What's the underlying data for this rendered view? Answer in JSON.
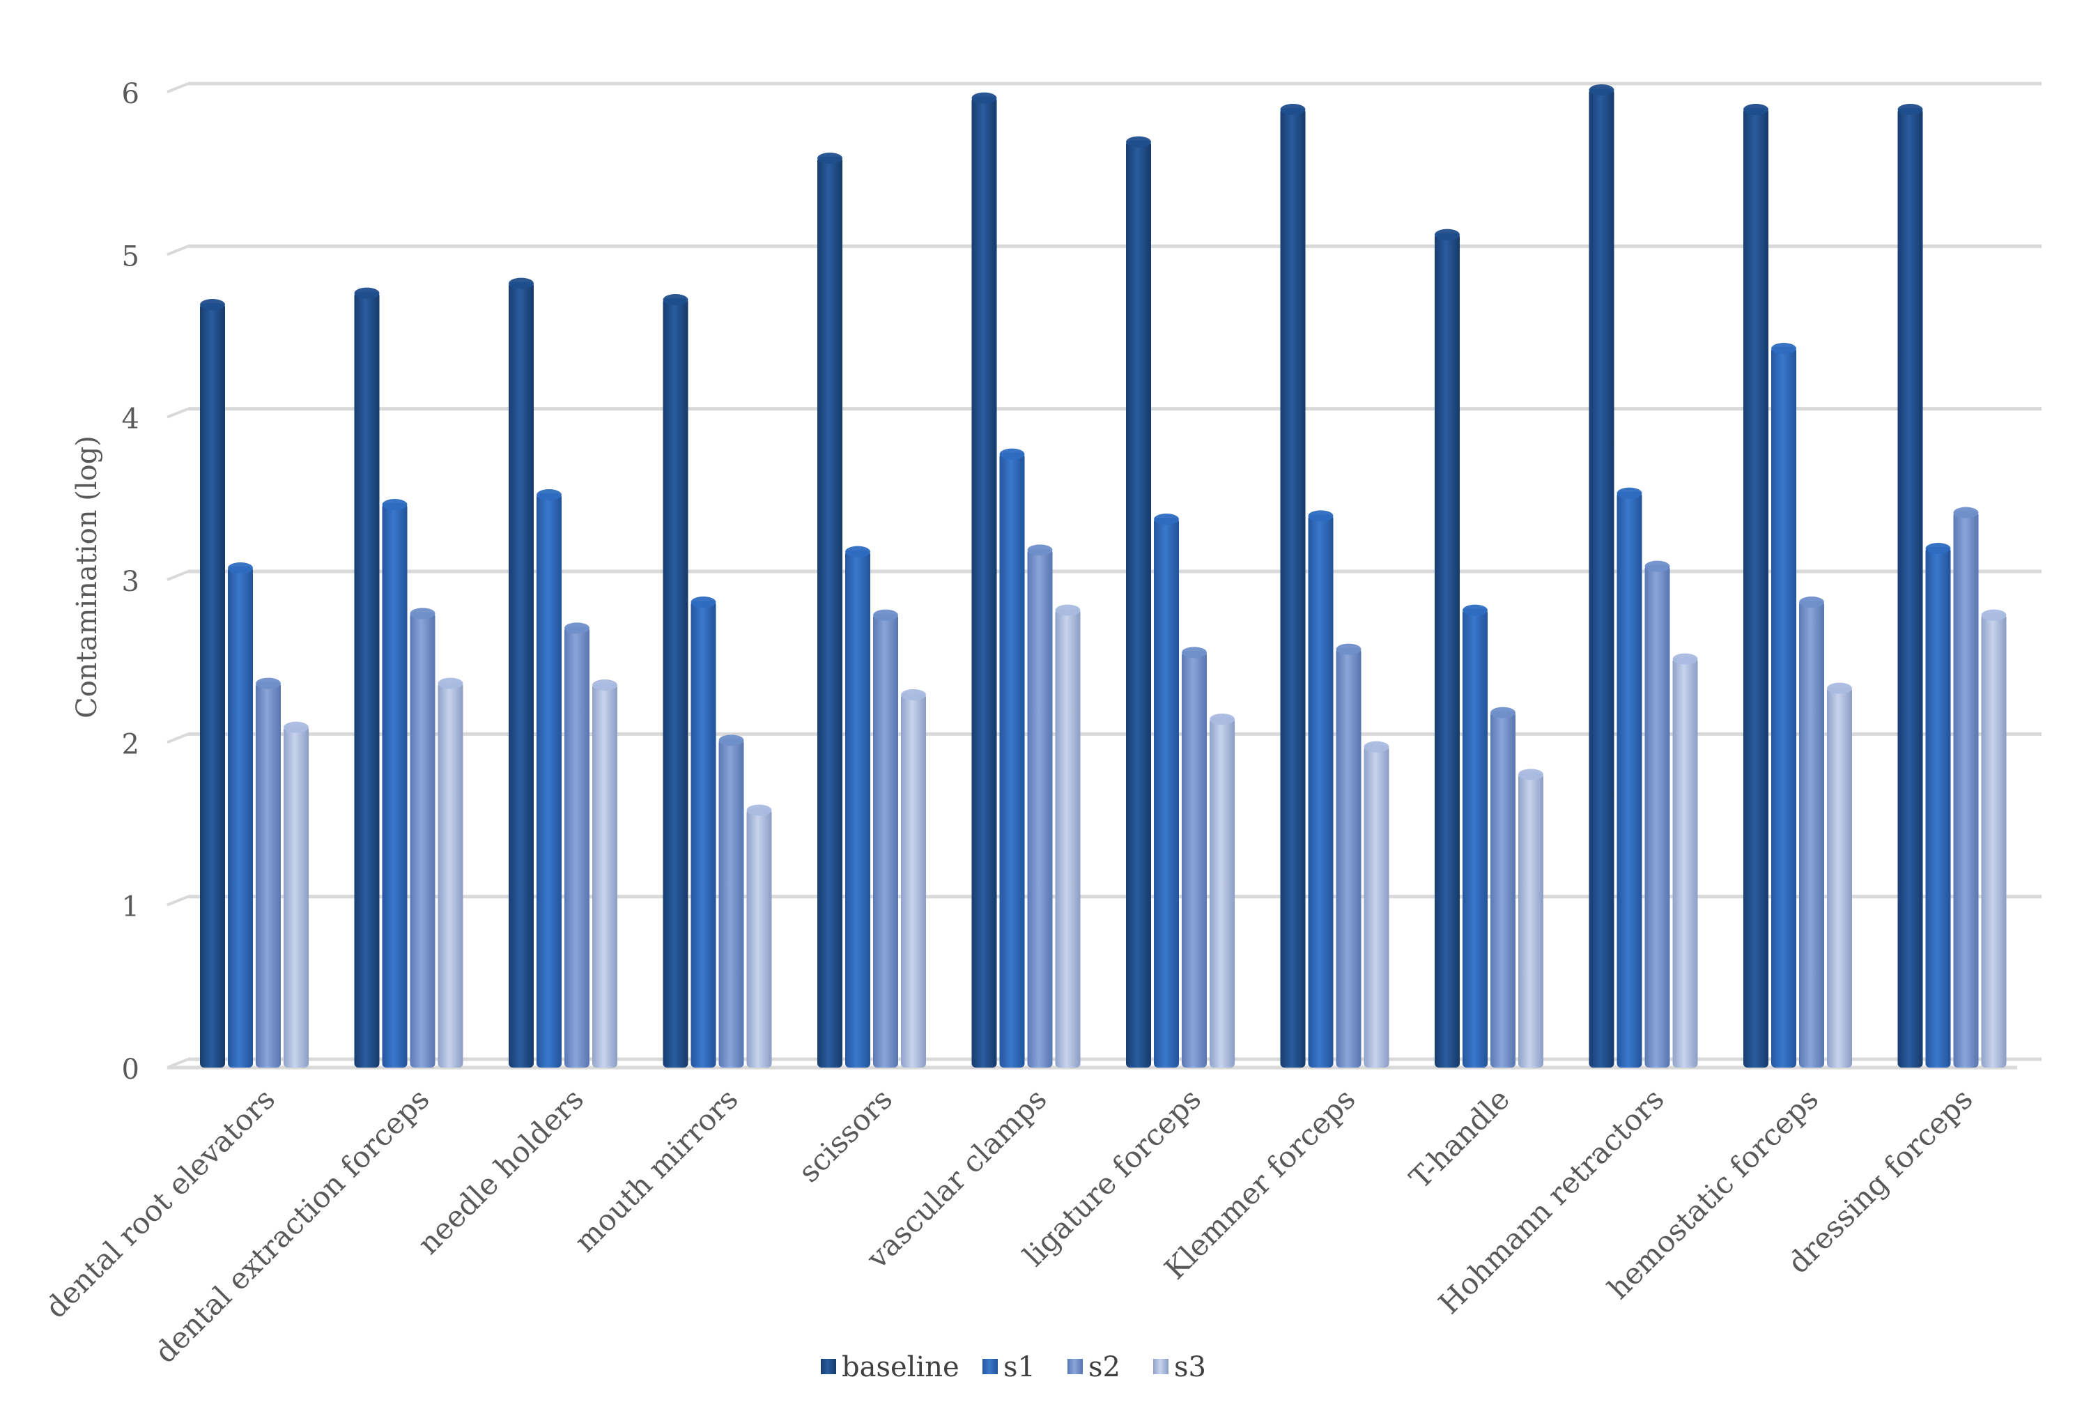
{
  "chart_data": {
    "type": "bar",
    "title": "",
    "xlabel": "",
    "ylabel": "Contamination (log)",
    "ylim": [
      0,
      6
    ],
    "yticks": [
      "0",
      "1",
      "2",
      "3",
      "4",
      "5",
      "6"
    ],
    "grid": true,
    "legend_position": "bottom",
    "categories": [
      "dental root elevators",
      "dental extraction forceps",
      "needle holders",
      "mouth mirrors",
      "scissors",
      "vascular clamps",
      "ligature forceps",
      "Klemmer forceps",
      "T-handle",
      "Hohmann retractors",
      "hemostatic forceps",
      "dressing forceps"
    ],
    "series": [
      {
        "name": "baseline",
        "color": "#1f4e8c",
        "values": [
          4.65,
          4.72,
          4.78,
          4.68,
          5.55,
          5.92,
          5.65,
          5.85,
          5.08,
          5.97,
          5.85,
          5.85
        ]
      },
      {
        "name": "s1",
        "color": "#2e6bc0",
        "values": [
          3.03,
          3.42,
          3.48,
          2.82,
          3.13,
          3.73,
          3.33,
          3.35,
          2.77,
          3.49,
          4.38,
          3.15
        ]
      },
      {
        "name": "s2",
        "color": "#6f8fc9",
        "values": [
          2.32,
          2.75,
          2.66,
          1.97,
          2.74,
          3.14,
          2.51,
          2.53,
          2.14,
          3.04,
          2.82,
          3.37
        ]
      },
      {
        "name": "s3",
        "color": "#a9bbe0",
        "values": [
          2.05,
          2.32,
          2.31,
          1.54,
          2.25,
          2.77,
          2.1,
          1.93,
          1.76,
          2.47,
          2.29,
          2.74
        ]
      }
    ]
  }
}
